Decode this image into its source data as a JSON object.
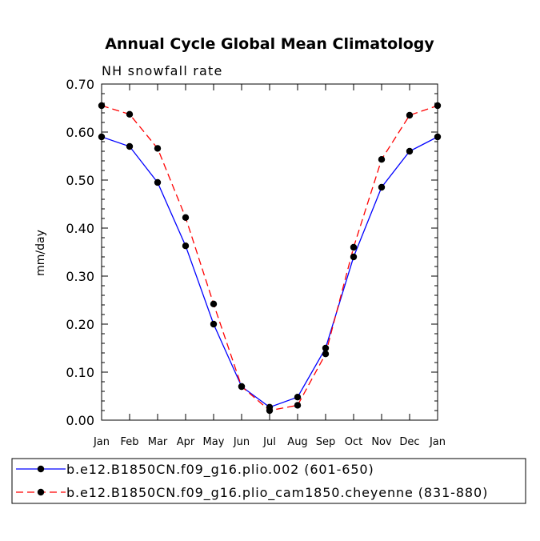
{
  "chart_data": {
    "type": "line",
    "title": "Annual Cycle Global Mean Climatology",
    "subtitle": "NH snowfall rate",
    "xlabel": "",
    "ylabel": "mm/day",
    "ylim": [
      0,
      0.7
    ],
    "yticks": [
      "0.00",
      "0.10",
      "0.20",
      "0.30",
      "0.40",
      "0.50",
      "0.60",
      "0.70"
    ],
    "categories": [
      "Jan",
      "Feb",
      "Mar",
      "Apr",
      "May",
      "Jun",
      "Jul",
      "Aug",
      "Sep",
      "Oct",
      "Nov",
      "Dec",
      "Jan"
    ],
    "series": [
      {
        "name": "b.e12.B1850CN.f09_g16.plio.002 (601-650)",
        "color": "#0000ff",
        "dash": "solid",
        "values": [
          0.59,
          0.57,
          0.495,
          0.363,
          0.2,
          0.07,
          0.027,
          0.048,
          0.15,
          0.34,
          0.485,
          0.56,
          0.59
        ]
      },
      {
        "name": "b.e12.B1850CN.f09_g16.plio_cam1850.cheyenne (831-880)",
        "color": "#ff0000",
        "dash": "dashed",
        "values": [
          0.655,
          0.637,
          0.566,
          0.422,
          0.242,
          0.07,
          0.02,
          0.031,
          0.138,
          0.36,
          0.543,
          0.635,
          0.655
        ]
      }
    ],
    "legend": "bottom"
  }
}
